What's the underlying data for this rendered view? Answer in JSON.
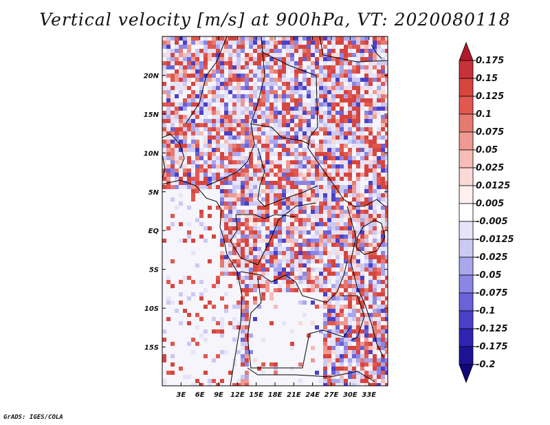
{
  "title": "Vertical velocity [m/s] at 900hPa, VT: 2020080118",
  "credit": "GrADS: IGES/COLA",
  "map": {
    "lon_range": [
      0,
      36
    ],
    "lat_range": [
      -20,
      25
    ],
    "lon_ticks": [
      {
        "value": 3,
        "label": "3E"
      },
      {
        "value": 6,
        "label": "6E"
      },
      {
        "value": 9,
        "label": "9E"
      },
      {
        "value": 12,
        "label": "12E"
      },
      {
        "value": 15,
        "label": "15E"
      },
      {
        "value": 18,
        "label": "18E"
      },
      {
        "value": 21,
        "label": "21E"
      },
      {
        "value": 24,
        "label": "24E"
      },
      {
        "value": 27,
        "label": "27E"
      },
      {
        "value": 30,
        "label": "30E"
      },
      {
        "value": 33,
        "label": "33E"
      }
    ],
    "lat_ticks": [
      {
        "value": 20,
        "label": "20N"
      },
      {
        "value": 15,
        "label": "15N"
      },
      {
        "value": 10,
        "label": "10N"
      },
      {
        "value": 5,
        "label": "5N"
      },
      {
        "value": 0,
        "label": "EQ"
      },
      {
        "value": -5,
        "label": "5S"
      },
      {
        "value": -10,
        "label": "10S"
      },
      {
        "value": -15,
        "label": "15S"
      }
    ],
    "ocean_color": "#f5f5fb",
    "land_fill_pattern": "red-blue noise"
  },
  "colorbar": {
    "levels": [
      "0.175",
      "0.15",
      "0.125",
      "0.1",
      "0.075",
      "0.05",
      "0.025",
      "0.0125",
      "0.005",
      "-0.005",
      "-0.0125",
      "-0.025",
      "-0.05",
      "-0.075",
      "-0.1",
      "-0.125",
      "-0.175",
      "-0.2"
    ],
    "colors": [
      "#b2182b",
      "#c8303a",
      "#d6453f",
      "#e0584f",
      "#e67a70",
      "#ee9a92",
      "#f6bcb6",
      "#fad9d6",
      "#fdf0ef",
      "#ffffff",
      "#e6e4f8",
      "#ccc9f3",
      "#aaa6ec",
      "#8b85e4",
      "#6962d8",
      "#4a41c8",
      "#2f25b2",
      "#1d1294",
      "#12077a"
    ]
  }
}
